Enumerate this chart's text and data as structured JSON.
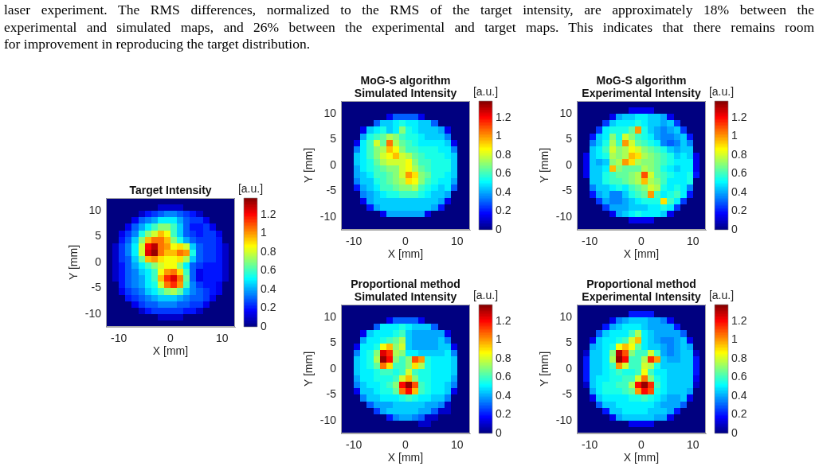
{
  "chart_data": [
    {
      "type": "other",
      "annotations": [
        "laser experiment. The RMS differences, normalized to the RMS of the target intensity, are approximately 18% between the",
        "experimental and simulated maps, and 26% between the experimental and target maps. This indicates that there remains room",
        "for improvement in reproducing the target distribution."
      ]
    },
    {
      "type": "heatmap",
      "title": "Target Intensity",
      "xlabel": "X [mm]",
      "ylabel": "Y [mm]",
      "clabel": "[a.u.]",
      "xlim": [
        -12.5,
        12.5
      ],
      "ylim": [
        -12.5,
        12.5
      ],
      "xticks": [
        -10,
        0,
        10
      ],
      "yticks": [
        -10,
        -5,
        0,
        5,
        10
      ],
      "clim": [
        0,
        1.38
      ],
      "cticks": [
        0,
        0.2,
        0.4,
        0.6,
        0.8,
        1,
        1.2
      ],
      "cells": [
        [
          0,
          0,
          0,
          0,
          0,
          0,
          0,
          0,
          0,
          0,
          0,
          0,
          0,
          0,
          0,
          0,
          0,
          0,
          0,
          0
        ],
        [
          0,
          0,
          0,
          0,
          0,
          0,
          0,
          0,
          0.1,
          0.1,
          0.1,
          0.1,
          0,
          0,
          0,
          0,
          0,
          0,
          0,
          0
        ],
        [
          0,
          0,
          0,
          0,
          0,
          0.1,
          0.2,
          0.25,
          0.3,
          0.35,
          0.35,
          0.3,
          0.25,
          0.2,
          0.1,
          0,
          0,
          0,
          0,
          0
        ],
        [
          0,
          0,
          0,
          0,
          0.15,
          0.3,
          0.35,
          0.4,
          0.5,
          0.5,
          0.5,
          0.4,
          0.3,
          0.25,
          0.25,
          0.15,
          0,
          0,
          0,
          0
        ],
        [
          0,
          0,
          0,
          0.15,
          0.3,
          0.4,
          0.5,
          0.6,
          0.7,
          0.7,
          0.6,
          0.45,
          0.3,
          0.2,
          0.2,
          0.25,
          0.15,
          0,
          0,
          0
        ],
        [
          0,
          0,
          0.15,
          0.25,
          0.35,
          0.55,
          0.7,
          0.8,
          0.95,
          0.85,
          0.6,
          0.45,
          0.3,
          0.25,
          0.2,
          0.25,
          0.25,
          0.15,
          0,
          0
        ],
        [
          0,
          0,
          0.2,
          0.3,
          0.45,
          0.7,
          0.95,
          1.05,
          1.05,
          0.95,
          0.7,
          0.55,
          0.4,
          0.3,
          0.25,
          0.25,
          0.25,
          0.2,
          0,
          0
        ],
        [
          0,
          0.1,
          0.25,
          0.35,
          0.5,
          0.8,
          1.2,
          1.3,
          1.05,
          1,
          0.85,
          0.9,
          0.8,
          0.45,
          0.3,
          0.25,
          0.25,
          0.2,
          0.1,
          0
        ],
        [
          0,
          0.1,
          0.25,
          0.35,
          0.5,
          0.8,
          1.25,
          1.35,
          1.05,
          0.95,
          0.95,
          1.05,
          1,
          0.55,
          0.3,
          0.25,
          0.25,
          0.2,
          0.1,
          0
        ],
        [
          0,
          0.1,
          0.25,
          0.3,
          0.45,
          0.65,
          0.95,
          1,
          0.9,
          0.85,
          0.85,
          0.9,
          0.75,
          0.45,
          0.3,
          0.25,
          0.25,
          0.2,
          0.1,
          0
        ],
        [
          0,
          0.1,
          0.2,
          0.3,
          0.4,
          0.5,
          0.6,
          0.7,
          0.8,
          0.85,
          0.85,
          0.7,
          0.5,
          0.3,
          0.25,
          0.2,
          0.2,
          0.2,
          0.1,
          0
        ],
        [
          0,
          0.1,
          0.2,
          0.3,
          0.35,
          0.45,
          0.5,
          0.6,
          0.85,
          1,
          1.05,
          0.9,
          0.6,
          0.3,
          0.15,
          0.2,
          0.2,
          0.2,
          0.1,
          0
        ],
        [
          0,
          0.1,
          0.2,
          0.3,
          0.35,
          0.4,
          0.5,
          0.6,
          0.95,
          1.15,
          1.25,
          1.05,
          0.65,
          0.3,
          0.15,
          0.2,
          0.2,
          0.2,
          0.1,
          0
        ],
        [
          0,
          0,
          0.2,
          0.3,
          0.35,
          0.4,
          0.5,
          0.55,
          0.8,
          1.05,
          1.15,
          1,
          0.6,
          0.35,
          0.25,
          0.2,
          0.2,
          0.15,
          0,
          0
        ],
        [
          0,
          0,
          0.15,
          0.25,
          0.3,
          0.35,
          0.45,
          0.5,
          0.6,
          0.7,
          0.75,
          0.65,
          0.45,
          0.35,
          0.3,
          0.25,
          0.2,
          0.15,
          0,
          0
        ],
        [
          0,
          0,
          0,
          0.2,
          0.25,
          0.3,
          0.35,
          0.4,
          0.45,
          0.45,
          0.45,
          0.4,
          0.35,
          0.3,
          0.3,
          0.25,
          0.15,
          0,
          0,
          0
        ],
        [
          0,
          0,
          0,
          0,
          0.15,
          0.25,
          0.3,
          0.3,
          0.35,
          0.35,
          0.35,
          0.3,
          0.3,
          0.25,
          0.25,
          0.15,
          0,
          0,
          0,
          0
        ],
        [
          0,
          0,
          0,
          0,
          0,
          0.1,
          0.2,
          0.25,
          0.25,
          0.25,
          0.25,
          0.25,
          0.2,
          0.2,
          0.1,
          0,
          0,
          0,
          0,
          0
        ],
        [
          0,
          0,
          0,
          0,
          0,
          0,
          0,
          0,
          0.1,
          0.1,
          0.1,
          0.1,
          0,
          0,
          0,
          0,
          0,
          0,
          0,
          0
        ],
        [
          0,
          0,
          0,
          0,
          0,
          0,
          0,
          0,
          0,
          0,
          0,
          0,
          0,
          0,
          0,
          0,
          0,
          0,
          0,
          0
        ]
      ]
    },
    {
      "type": "heatmap",
      "title": "MoG-S algorithm\nSimulated Intensity",
      "xlabel": "X [mm]",
      "ylabel": "Y [mm]",
      "clabel": "[a.u.]",
      "xlim": [
        -12.5,
        12.5
      ],
      "ylim": [
        -12.5,
        12.5
      ],
      "xticks": [
        -10,
        0,
        10
      ],
      "yticks": [
        -10,
        -5,
        0,
        5,
        10
      ],
      "clim": [
        0,
        1.38
      ],
      "cticks": [
        0,
        0.2,
        0.4,
        0.6,
        0.8,
        1,
        1.2
      ],
      "cells": [
        [
          0,
          0,
          0,
          0,
          0,
          0,
          0,
          0,
          0,
          0,
          0,
          0,
          0,
          0,
          0,
          0,
          0,
          0,
          0,
          0
        ],
        [
          0,
          0,
          0,
          0,
          0,
          0,
          0,
          0,
          0,
          0,
          0,
          0,
          0,
          0,
          0,
          0,
          0,
          0,
          0,
          0
        ],
        [
          0,
          0,
          0,
          0,
          0,
          0,
          0,
          0.15,
          0.3,
          0.3,
          0.3,
          0.3,
          0.15,
          0,
          0,
          0,
          0,
          0,
          0,
          0
        ],
        [
          0,
          0,
          0,
          0,
          0,
          0.3,
          0.45,
          0.45,
          0.5,
          0.55,
          0.5,
          0.5,
          0.45,
          0.45,
          0.3,
          0,
          0,
          0,
          0,
          0
        ],
        [
          0,
          0,
          0,
          0.15,
          0.45,
          0.5,
          0.55,
          0.45,
          0.5,
          0.7,
          0.55,
          0.5,
          0.45,
          0.45,
          0.45,
          0.4,
          0.15,
          0,
          0,
          0
        ],
        [
          0,
          0,
          0,
          0.4,
          0.55,
          0.6,
          0.65,
          0.75,
          0.7,
          0.6,
          0.55,
          0.55,
          0.5,
          0.45,
          0.45,
          0.45,
          0.35,
          0,
          0,
          0
        ],
        [
          0,
          0,
          0.15,
          0.5,
          0.6,
          0.8,
          0.65,
          1.05,
          0.75,
          0.65,
          0.6,
          0.55,
          0.5,
          0.5,
          0.5,
          0.5,
          0.45,
          0.15,
          0,
          0
        ],
        [
          0,
          0,
          0.35,
          0.5,
          0.6,
          0.7,
          0.75,
          0.95,
          0.85,
          0.7,
          0.6,
          0.6,
          0.55,
          0.55,
          0.55,
          0.5,
          0.5,
          0.35,
          0,
          0
        ],
        [
          0,
          0,
          0.45,
          0.5,
          0.6,
          0.7,
          0.8,
          0.85,
          0.95,
          0.8,
          0.75,
          0.65,
          0.6,
          0.55,
          0.55,
          0.55,
          0.5,
          0.45,
          0,
          0
        ],
        [
          0,
          0,
          0.45,
          0.5,
          0.55,
          0.65,
          0.75,
          0.8,
          0.8,
          0.8,
          0.85,
          0.7,
          0.6,
          0.6,
          0.55,
          0.55,
          0.55,
          0.45,
          0,
          0
        ],
        [
          0,
          0,
          0.4,
          0.5,
          0.55,
          0.6,
          0.65,
          0.7,
          0.7,
          0.8,
          0.85,
          0.75,
          0.65,
          0.6,
          0.55,
          0.55,
          0.55,
          0.45,
          0,
          0
        ],
        [
          0,
          0,
          0.4,
          0.45,
          0.5,
          0.6,
          0.6,
          0.65,
          0.7,
          0.8,
          1,
          0.9,
          0.7,
          0.65,
          0.55,
          0.55,
          0.5,
          0.45,
          0,
          0
        ],
        [
          0,
          0,
          0.35,
          0.45,
          0.45,
          0.55,
          0.6,
          0.65,
          0.7,
          0.75,
          0.9,
          0.85,
          0.7,
          0.6,
          0.55,
          0.5,
          0.5,
          0.4,
          0,
          0
        ],
        [
          0,
          0,
          0.2,
          0.4,
          0.45,
          0.5,
          0.6,
          0.6,
          0.65,
          0.7,
          0.7,
          0.75,
          0.6,
          0.55,
          0.5,
          0.45,
          0.5,
          0.3,
          0,
          0
        ],
        [
          0,
          0,
          0,
          0.35,
          0.4,
          0.45,
          0.5,
          0.55,
          0.55,
          0.6,
          0.6,
          0.6,
          0.55,
          0.5,
          0.45,
          0.45,
          0.4,
          0,
          0,
          0
        ],
        [
          0,
          0,
          0,
          0.15,
          0.4,
          0.45,
          0.45,
          0.45,
          0.45,
          0.45,
          0.45,
          0.45,
          0.45,
          0.45,
          0.45,
          0.4,
          0.15,
          0,
          0,
          0
        ],
        [
          0,
          0,
          0,
          0,
          0.2,
          0.4,
          0.45,
          0.45,
          0.45,
          0.45,
          0.45,
          0.45,
          0.45,
          0.45,
          0.4,
          0.2,
          0,
          0,
          0,
          0
        ],
        [
          0,
          0,
          0,
          0,
          0,
          0,
          0.15,
          0.4,
          0.4,
          0.4,
          0.4,
          0.4,
          0.4,
          0.15,
          0,
          0,
          0,
          0,
          0,
          0
        ],
        [
          0,
          0,
          0,
          0,
          0,
          0,
          0,
          0,
          0,
          0,
          0,
          0,
          0,
          0,
          0,
          0,
          0,
          0,
          0,
          0
        ],
        [
          0,
          0,
          0,
          0,
          0,
          0,
          0,
          0,
          0,
          0,
          0,
          0,
          0,
          0,
          0,
          0,
          0,
          0,
          0,
          0
        ]
      ]
    },
    {
      "type": "heatmap",
      "title": "MoG-S algorithm\nExperimental Intensity",
      "xlabel": "X [mm]",
      "ylabel": "Y [mm]",
      "clabel": "[a.u.]",
      "xlim": [
        -12.5,
        12.5
      ],
      "ylim": [
        -12.5,
        12.5
      ],
      "xticks": [
        -10,
        0,
        10
      ],
      "yticks": [
        -10,
        -5,
        0,
        5,
        10
      ],
      "clim": [
        0,
        1.38
      ],
      "cticks": [
        0,
        0.2,
        0.4,
        0.6,
        0.8,
        1,
        1.2
      ],
      "cells": [
        [
          0,
          0,
          0,
          0,
          0,
          0,
          0,
          0,
          0,
          0,
          0,
          0,
          0,
          0,
          0,
          0,
          0,
          0,
          0,
          0
        ],
        [
          0,
          0,
          0,
          0,
          0,
          0,
          0,
          0,
          0.15,
          0.15,
          0.15,
          0.15,
          0,
          0,
          0,
          0,
          0,
          0,
          0,
          0
        ],
        [
          0,
          0,
          0,
          0,
          0,
          0.15,
          0.4,
          0.45,
          0.45,
          0.5,
          0.5,
          0.45,
          0.45,
          0.4,
          0.15,
          0,
          0,
          0,
          0,
          0
        ],
        [
          0,
          0,
          0,
          0,
          0.25,
          0.45,
          0.5,
          0.5,
          0.5,
          0.55,
          0.5,
          0.45,
          0.45,
          0.4,
          0.45,
          0.25,
          0,
          0,
          0,
          0
        ],
        [
          0,
          0,
          0,
          0.25,
          0.5,
          0.55,
          0.55,
          0.55,
          0.65,
          1,
          0.55,
          0.45,
          0.4,
          0.35,
          0.4,
          0.45,
          0.25,
          0,
          0,
          0
        ],
        [
          0,
          0,
          0.2,
          0.45,
          0.5,
          0.7,
          0.55,
          0.8,
          0.7,
          0.6,
          0.55,
          0.5,
          0.4,
          0.35,
          0.35,
          0.4,
          0.45,
          0.2,
          0,
          0
        ],
        [
          0,
          0,
          0.35,
          0.45,
          0.55,
          0.75,
          0.6,
          1,
          0.8,
          0.65,
          0.6,
          0.55,
          0.5,
          0.35,
          0.3,
          0.35,
          0.45,
          0.35,
          0,
          0
        ],
        [
          0,
          0,
          0.45,
          0.5,
          0.6,
          0.8,
          0.7,
          0.75,
          0.85,
          0.8,
          0.7,
          0.65,
          0.6,
          0.55,
          0.45,
          0.4,
          0.45,
          0.45,
          0,
          0
        ],
        [
          0,
          0.15,
          0.45,
          0.5,
          0.55,
          0.75,
          0.7,
          0.75,
          0.95,
          0.9,
          0.75,
          0.7,
          0.65,
          0.6,
          0.55,
          0.45,
          0.5,
          0.45,
          0.15,
          0
        ],
        [
          0,
          0.15,
          0.45,
          0.4,
          0.45,
          0.7,
          0.75,
          1,
          0.9,
          0.75,
          0.7,
          0.7,
          0.65,
          0.6,
          0.55,
          0.5,
          0.5,
          0.5,
          0.15,
          0
        ],
        [
          0,
          0.15,
          0.45,
          0.45,
          0.5,
          0.95,
          0.7,
          0.65,
          0.65,
          0.65,
          0.75,
          0.7,
          0.65,
          0.55,
          0.5,
          0.45,
          0.5,
          0.5,
          0.15,
          0
        ],
        [
          0,
          0.15,
          0.45,
          0.45,
          0.55,
          0.6,
          0.65,
          0.65,
          0.7,
          0.75,
          1.1,
          0.8,
          0.65,
          0.6,
          0.55,
          0.5,
          0.5,
          0.55,
          0.2,
          0
        ],
        [
          0,
          0,
          0.45,
          0.45,
          0.55,
          0.6,
          0.6,
          0.65,
          0.7,
          0.75,
          0.95,
          0.75,
          0.7,
          0.6,
          0.5,
          0.5,
          0.5,
          0.55,
          0,
          0
        ],
        [
          0,
          0,
          0.35,
          0.45,
          0.45,
          0.5,
          0.55,
          0.5,
          0.6,
          0.65,
          0.7,
          0.8,
          0.75,
          0.55,
          0.5,
          0.55,
          0.5,
          0.35,
          0,
          0
        ],
        [
          0,
          0,
          0.2,
          0.4,
          0.45,
          0.35,
          0.35,
          0.45,
          0.55,
          0.6,
          0.65,
          1,
          0.6,
          0.5,
          0.55,
          0.6,
          0.5,
          0.2,
          0,
          0
        ],
        [
          0,
          0,
          0,
          0.25,
          0.4,
          0.35,
          0.35,
          0.4,
          0.45,
          0.5,
          0.55,
          0.55,
          0.55,
          0.9,
          0.6,
          0.5,
          0.25,
          0,
          0,
          0
        ],
        [
          0,
          0,
          0,
          0,
          0.25,
          0.4,
          0.4,
          0.4,
          0.45,
          0.45,
          0.45,
          0.5,
          0.5,
          0.55,
          0.5,
          0.25,
          0,
          0,
          0,
          0
        ],
        [
          0,
          0,
          0,
          0,
          0,
          0.15,
          0.4,
          0.45,
          0.5,
          0.55,
          0.5,
          0.5,
          0.5,
          0.45,
          0.15,
          0,
          0,
          0,
          0,
          0
        ],
        [
          0,
          0,
          0,
          0,
          0,
          0,
          0,
          0,
          0.15,
          0.15,
          0.15,
          0.15,
          0,
          0,
          0,
          0,
          0,
          0,
          0,
          0
        ],
        [
          0,
          0,
          0,
          0,
          0,
          0,
          0,
          0,
          0,
          0,
          0,
          0,
          0,
          0,
          0,
          0,
          0,
          0,
          0,
          0
        ]
      ]
    },
    {
      "type": "heatmap",
      "title": "Proportional method\nSimulated Intensity",
      "xlabel": "X [mm]",
      "ylabel": "Y [mm]",
      "clabel": "[a.u.]",
      "xlim": [
        -12.5,
        12.5
      ],
      "ylim": [
        -12.5,
        12.5
      ],
      "xticks": [
        -10,
        0,
        10
      ],
      "yticks": [
        -10,
        -5,
        0,
        5,
        10
      ],
      "clim": [
        0,
        1.38
      ],
      "cticks": [
        0,
        0.2,
        0.4,
        0.6,
        0.8,
        1,
        1.2
      ],
      "cells": [
        [
          0,
          0,
          0,
          0,
          0,
          0,
          0,
          0,
          0,
          0,
          0,
          0,
          0,
          0,
          0,
          0,
          0,
          0,
          0,
          0
        ],
        [
          0,
          0,
          0,
          0,
          0,
          0,
          0,
          0,
          0,
          0,
          0,
          0,
          0,
          0,
          0,
          0,
          0,
          0,
          0,
          0
        ],
        [
          0,
          0,
          0,
          0,
          0,
          0,
          0,
          0.15,
          0.3,
          0.3,
          0.3,
          0.3,
          0.15,
          0,
          0,
          0,
          0,
          0,
          0,
          0
        ],
        [
          0,
          0,
          0,
          0,
          0,
          0.3,
          0.5,
          0.5,
          0.5,
          0.55,
          0.5,
          0.45,
          0.45,
          0.45,
          0.3,
          0,
          0,
          0,
          0,
          0
        ],
        [
          0,
          0,
          0,
          0.15,
          0.45,
          0.5,
          0.5,
          0.5,
          0.55,
          0.6,
          0.45,
          0.4,
          0.4,
          0.4,
          0.4,
          0.4,
          0.15,
          0,
          0,
          0
        ],
        [
          0,
          0,
          0,
          0.4,
          0.5,
          0.5,
          0.55,
          0.6,
          0.65,
          0.75,
          0.45,
          0.4,
          0.4,
          0.4,
          0.4,
          0.45,
          0.35,
          0,
          0,
          0
        ],
        [
          0,
          0,
          0.15,
          0.5,
          0.5,
          0.55,
          0.85,
          0.95,
          0.7,
          0.8,
          0.45,
          0.4,
          0.4,
          0.4,
          0.4,
          0.45,
          0.45,
          0.15,
          0,
          0
        ],
        [
          0,
          0,
          0.35,
          0.5,
          0.55,
          0.7,
          1.25,
          1.15,
          0.75,
          0.7,
          0.5,
          0.5,
          0.45,
          0.45,
          0.45,
          0.45,
          0.5,
          0.35,
          0,
          0
        ],
        [
          0,
          0,
          0.45,
          0.5,
          0.55,
          0.75,
          1.35,
          1.2,
          0.7,
          0.6,
          0.7,
          1.1,
          1,
          0.55,
          0.5,
          0.5,
          0.5,
          0.45,
          0,
          0
        ],
        [
          0,
          0,
          0.45,
          0.5,
          0.55,
          0.65,
          1.05,
          0.9,
          0.6,
          0.6,
          0.7,
          0.9,
          0.75,
          0.55,
          0.5,
          0.5,
          0.5,
          0.45,
          0,
          0
        ],
        [
          0,
          0,
          0.45,
          0.5,
          0.5,
          0.55,
          0.6,
          0.6,
          0.55,
          0.6,
          0.8,
          0.6,
          0.55,
          0.55,
          0.5,
          0.5,
          0.5,
          0.45,
          0,
          0
        ],
        [
          0,
          0,
          0.4,
          0.5,
          0.5,
          0.55,
          0.55,
          0.55,
          0.6,
          0.8,
          0.95,
          0.7,
          0.55,
          0.55,
          0.5,
          0.5,
          0.5,
          0.4,
          0,
          0
        ],
        [
          0,
          0,
          0.35,
          0.45,
          0.5,
          0.5,
          0.55,
          0.6,
          0.7,
          1.2,
          1.35,
          1.1,
          0.6,
          0.55,
          0.5,
          0.5,
          0.45,
          0.35,
          0,
          0
        ],
        [
          0,
          0,
          0.15,
          0.45,
          0.45,
          0.5,
          0.55,
          0.55,
          0.65,
          1.05,
          1.2,
          0.95,
          0.6,
          0.55,
          0.5,
          0.5,
          0.45,
          0.15,
          0,
          0
        ],
        [
          0,
          0,
          0,
          0.35,
          0.45,
          0.45,
          0.5,
          0.5,
          0.5,
          0.55,
          0.6,
          0.55,
          0.5,
          0.5,
          0.45,
          0.45,
          0.35,
          0,
          0,
          0
        ],
        [
          0,
          0,
          0,
          0,
          0.3,
          0.4,
          0.4,
          0.4,
          0.45,
          0.45,
          0.45,
          0.45,
          0.45,
          0.4,
          0.4,
          0.35,
          0.1,
          0,
          0,
          0
        ],
        [
          0,
          0,
          0,
          0,
          0,
          0.25,
          0.4,
          0.45,
          0.45,
          0.45,
          0.45,
          0.45,
          0.4,
          0.4,
          0.3,
          0.1,
          0.1,
          0,
          0,
          0
        ],
        [
          0,
          0,
          0,
          0,
          0,
          0,
          0,
          0.2,
          0.35,
          0.4,
          0.4,
          0.35,
          0.3,
          0.1,
          0.1,
          0,
          0,
          0,
          0,
          0
        ],
        [
          0,
          0,
          0,
          0,
          0,
          0,
          0,
          0,
          0,
          0,
          0,
          0,
          0.1,
          0.1,
          0,
          0,
          0,
          0,
          0,
          0
        ],
        [
          0,
          0,
          0,
          0,
          0,
          0,
          0,
          0,
          0,
          0,
          0,
          0,
          0,
          0,
          0,
          0,
          0,
          0,
          0,
          0
        ]
      ]
    },
    {
      "type": "heatmap",
      "title": "Proportional method\nExperimental Intensity",
      "xlabel": "X [mm]",
      "ylabel": "Y [mm]",
      "clabel": "[a.u.]",
      "xlim": [
        -12.5,
        12.5
      ],
      "ylim": [
        -12.5,
        12.5
      ],
      "xticks": [
        -10,
        0,
        10
      ],
      "yticks": [
        -10,
        -5,
        0,
        5,
        10
      ],
      "clim": [
        0,
        1.38
      ],
      "cticks": [
        0,
        0.2,
        0.4,
        0.6,
        0.8,
        1,
        1.2
      ],
      "cells": [
        [
          0,
          0,
          0,
          0,
          0,
          0,
          0,
          0,
          0,
          0,
          0,
          0,
          0,
          0,
          0,
          0,
          0,
          0,
          0,
          0
        ],
        [
          0,
          0,
          0,
          0,
          0,
          0,
          0,
          0,
          0.2,
          0.2,
          0.2,
          0.2,
          0,
          0,
          0,
          0,
          0,
          0,
          0,
          0
        ],
        [
          0,
          0,
          0,
          0,
          0,
          0.15,
          0.35,
          0.4,
          0.45,
          0.45,
          0.45,
          0.4,
          0.4,
          0.35,
          0.15,
          0,
          0,
          0,
          0,
          0
        ],
        [
          0,
          0,
          0,
          0,
          0.2,
          0.4,
          0.45,
          0.5,
          0.5,
          0.5,
          0.45,
          0.4,
          0.4,
          0.4,
          0.4,
          0.2,
          0,
          0,
          0,
          0
        ],
        [
          0,
          0,
          0,
          0.3,
          0.45,
          0.5,
          0.5,
          0.5,
          0.6,
          0.75,
          0.5,
          0.45,
          0.4,
          0.4,
          0.4,
          0.4,
          0.3,
          0,
          0,
          0
        ],
        [
          0,
          0,
          0.15,
          0.45,
          0.5,
          0.5,
          0.55,
          0.6,
          0.8,
          0.95,
          0.5,
          0.45,
          0.4,
          0.35,
          0.35,
          0.4,
          0.45,
          0.15,
          0,
          0
        ],
        [
          0,
          0,
          0.4,
          0.45,
          0.5,
          0.55,
          0.85,
          0.95,
          0.85,
          0.65,
          0.5,
          0.45,
          0.45,
          0.4,
          0.35,
          0.4,
          0.45,
          0.4,
          0,
          0
        ],
        [
          0,
          0.1,
          0.45,
          0.45,
          0.5,
          0.7,
          1.3,
          1.1,
          0.7,
          0.6,
          0.6,
          0.8,
          0.6,
          0.4,
          0.35,
          0.4,
          0.45,
          0.45,
          0.1,
          0
        ],
        [
          0,
          0.2,
          0.45,
          0.45,
          0.5,
          0.75,
          1.35,
          1.2,
          0.6,
          0.6,
          0.75,
          1.15,
          1,
          0.45,
          0.4,
          0.4,
          0.45,
          0.45,
          0.2,
          0
        ],
        [
          0,
          0.2,
          0.45,
          0.45,
          0.5,
          0.6,
          1,
          0.8,
          0.6,
          0.6,
          0.8,
          0.75,
          0.55,
          0.45,
          0.45,
          0.45,
          0.45,
          0.45,
          0.2,
          0
        ],
        [
          0,
          0.2,
          0.45,
          0.45,
          0.5,
          0.55,
          0.6,
          0.55,
          0.55,
          0.6,
          0.85,
          0.6,
          0.5,
          0.5,
          0.45,
          0.45,
          0.45,
          0.45,
          0.2,
          0
        ],
        [
          0,
          0.2,
          0.45,
          0.5,
          0.5,
          0.55,
          0.55,
          0.6,
          0.6,
          0.8,
          1.05,
          0.7,
          0.55,
          0.5,
          0.45,
          0.45,
          0.45,
          0.45,
          0.15,
          0
        ],
        [
          0,
          0.1,
          0.45,
          0.5,
          0.55,
          0.55,
          0.6,
          0.6,
          0.75,
          1.2,
          1.35,
          1.15,
          0.6,
          0.5,
          0.45,
          0.45,
          0.45,
          0.45,
          0.1,
          0
        ],
        [
          0,
          0,
          0.4,
          0.5,
          0.55,
          0.55,
          0.55,
          0.6,
          0.65,
          1,
          1.2,
          1.1,
          0.55,
          0.5,
          0.45,
          0.45,
          0.45,
          0.4,
          0,
          0
        ],
        [
          0,
          0,
          0.15,
          0.45,
          0.5,
          0.5,
          0.5,
          0.5,
          0.55,
          0.55,
          0.6,
          0.55,
          0.5,
          0.45,
          0.4,
          0.4,
          0.45,
          0.15,
          0,
          0
        ],
        [
          0,
          0,
          0,
          0.3,
          0.45,
          0.45,
          0.5,
          0.5,
          0.5,
          0.5,
          0.5,
          0.5,
          0.45,
          0.4,
          0.4,
          0.4,
          0.3,
          0,
          0,
          0
        ],
        [
          0,
          0,
          0,
          0,
          0.2,
          0.45,
          0.45,
          0.5,
          0.5,
          0.5,
          0.5,
          0.45,
          0.45,
          0.45,
          0.4,
          0.2,
          0,
          0,
          0,
          0
        ],
        [
          0,
          0,
          0,
          0,
          0,
          0.15,
          0.4,
          0.45,
          0.45,
          0.45,
          0.45,
          0.45,
          0.4,
          0.4,
          0.15,
          0,
          0,
          0,
          0,
          0
        ],
        [
          0,
          0,
          0,
          0,
          0,
          0,
          0,
          0,
          0.15,
          0.15,
          0.15,
          0.15,
          0,
          0,
          0,
          0,
          0,
          0,
          0,
          0
        ],
        [
          0,
          0,
          0,
          0,
          0,
          0,
          0,
          0,
          0,
          0,
          0,
          0,
          0,
          0,
          0,
          0,
          0,
          0,
          0,
          0
        ]
      ]
    }
  ]
}
